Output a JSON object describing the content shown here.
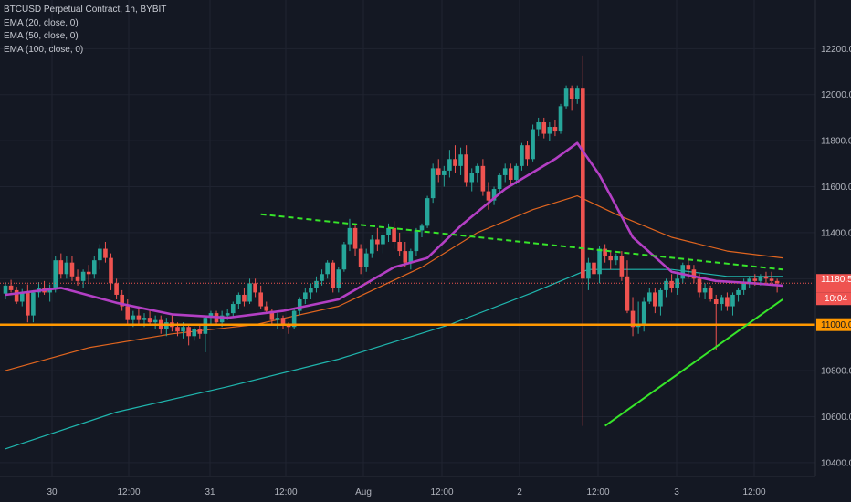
{
  "header": {
    "title": "BTCUSD Perpetual Contract, 1h, BYBIT",
    "indicators": [
      "EMA (20, close, 0)",
      "EMA (50, close, 0)",
      "EMA (100, close, 0)"
    ]
  },
  "colors": {
    "background": "#141823",
    "up": "#26a69a",
    "down": "#ef5350",
    "ema20": "#b33fc4",
    "ema50": "#e0651f",
    "ema100": "#1fb5ad",
    "support": "#ff9800",
    "trendline": "#37e52a",
    "price_tag": "#ef5350",
    "support_tag": "#ff9800"
  },
  "chart_data": {
    "type": "candlestick",
    "title": "BTCUSD Perpetual Contract, 1h, BYBIT",
    "y_axis": {
      "ticks": [
        10400,
        10600,
        10800,
        11000,
        11200,
        11400,
        11600,
        11800,
        12000,
        12200
      ],
      "tick_labels": [
        "10400.0",
        "10600.0",
        "10800.0",
        "11000.0",
        "11200.0",
        "11400.0",
        "11600.0",
        "11800.0",
        "12000.0",
        "12200.0"
      ],
      "range": [
        10340,
        12380
      ]
    },
    "x_axis": {
      "tick_labels": [
        "30",
        "12:00",
        "31",
        "12:00",
        "Aug",
        "12:00",
        "2",
        "12:00",
        "3",
        "12:00"
      ]
    },
    "candles_ohlc": [
      [
        11135,
        11185,
        11110,
        11170
      ],
      [
        11170,
        11195,
        11140,
        11150
      ],
      [
        11150,
        11165,
        11090,
        11100
      ],
      [
        11100,
        11155,
        11080,
        11140
      ],
      [
        11140,
        11175,
        11010,
        11040
      ],
      [
        11040,
        11150,
        11010,
        11140
      ],
      [
        11140,
        11185,
        11120,
        11160
      ],
      [
        11160,
        11190,
        11130,
        11140
      ],
      [
        11140,
        11175,
        11100,
        11160
      ],
      [
        11160,
        11300,
        11140,
        11280
      ],
      [
        11280,
        11310,
        11200,
        11220
      ],
      [
        11220,
        11300,
        11200,
        11270
      ],
      [
        11270,
        11300,
        11190,
        11210
      ],
      [
        11210,
        11240,
        11170,
        11190
      ],
      [
        11190,
        11240,
        11160,
        11230
      ],
      [
        11230,
        11260,
        11180,
        11220
      ],
      [
        11220,
        11300,
        11200,
        11280
      ],
      [
        11280,
        11350,
        11240,
        11330
      ],
      [
        11330,
        11360,
        11270,
        11290
      ],
      [
        11290,
        11310,
        11150,
        11180
      ],
      [
        11180,
        11200,
        11110,
        11130
      ],
      [
        11130,
        11150,
        11060,
        11080
      ],
      [
        11080,
        11110,
        11000,
        11020
      ],
      [
        11020,
        11060,
        10990,
        11040
      ],
      [
        11040,
        11070,
        11000,
        11020
      ],
      [
        11020,
        11050,
        10990,
        11030
      ],
      [
        11030,
        11060,
        11000,
        11010
      ],
      [
        11010,
        11040,
        10980,
        11020
      ],
      [
        11020,
        11040,
        10960,
        10980
      ],
      [
        10980,
        11030,
        10950,
        11010
      ],
      [
        11010,
        11040,
        10970,
        10990
      ],
      [
        10990,
        11010,
        10950,
        10970
      ],
      [
        10970,
        11010,
        10940,
        10990
      ],
      [
        10990,
        11000,
        10910,
        10950
      ],
      [
        10950,
        10990,
        10930,
        10980
      ],
      [
        10980,
        11000,
        10940,
        10960
      ],
      [
        10960,
        11040,
        10880,
        11030
      ],
      [
        11030,
        11060,
        11000,
        11050
      ],
      [
        11050,
        11060,
        11000,
        11010
      ],
      [
        11010,
        11060,
        10990,
        11040
      ],
      [
        11040,
        11070,
        11020,
        11050
      ],
      [
        11050,
        11100,
        11030,
        11090
      ],
      [
        11090,
        11140,
        11070,
        11130
      ],
      [
        11130,
        11160,
        11080,
        11100
      ],
      [
        11100,
        11200,
        11090,
        11180
      ],
      [
        11180,
        11200,
        11120,
        11140
      ],
      [
        11140,
        11170,
        11070,
        11080
      ],
      [
        11080,
        11100,
        11050,
        11060
      ],
      [
        11060,
        11070,
        11000,
        11020
      ],
      [
        11020,
        11050,
        10980,
        11030
      ],
      [
        11030,
        11040,
        10980,
        11000
      ],
      [
        11000,
        11010,
        10960,
        10990
      ],
      [
        10990,
        11070,
        10980,
        11060
      ],
      [
        11060,
        11120,
        11040,
        11110
      ],
      [
        11110,
        11160,
        11090,
        11140
      ],
      [
        11140,
        11180,
        11110,
        11160
      ],
      [
        11160,
        11210,
        11140,
        11190
      ],
      [
        11190,
        11240,
        11170,
        11220
      ],
      [
        11220,
        11280,
        11200,
        11270
      ],
      [
        11270,
        11280,
        11140,
        11160
      ],
      [
        11160,
        11250,
        11140,
        11240
      ],
      [
        11240,
        11360,
        11230,
        11350
      ],
      [
        11350,
        11460,
        11320,
        11420
      ],
      [
        11420,
        11440,
        11300,
        11330
      ],
      [
        11330,
        11350,
        11220,
        11250
      ],
      [
        11250,
        11330,
        11230,
        11310
      ],
      [
        11310,
        11390,
        11290,
        11370
      ],
      [
        11370,
        11420,
        11320,
        11350
      ],
      [
        11350,
        11400,
        11310,
        11390
      ],
      [
        11390,
        11440,
        11360,
        11420
      ],
      [
        11420,
        11450,
        11330,
        11360
      ],
      [
        11360,
        11400,
        11300,
        11320
      ],
      [
        11320,
        11360,
        11250,
        11270
      ],
      [
        11270,
        11330,
        11240,
        11320
      ],
      [
        11320,
        11420,
        11300,
        11410
      ],
      [
        11410,
        11440,
        11380,
        11430
      ],
      [
        11430,
        11560,
        11420,
        11550
      ],
      [
        11550,
        11700,
        11530,
        11680
      ],
      [
        11680,
        11720,
        11620,
        11650
      ],
      [
        11650,
        11690,
        11600,
        11670
      ],
      [
        11670,
        11760,
        11640,
        11720
      ],
      [
        11720,
        11780,
        11660,
        11690
      ],
      [
        11690,
        11770,
        11650,
        11740
      ],
      [
        11740,
        11780,
        11600,
        11620
      ],
      [
        11620,
        11680,
        11580,
        11660
      ],
      [
        11660,
        11700,
        11620,
        11690
      ],
      [
        11690,
        11720,
        11560,
        11580
      ],
      [
        11580,
        11620,
        11500,
        11540
      ],
      [
        11540,
        11600,
        11520,
        11590
      ],
      [
        11590,
        11660,
        11570,
        11650
      ],
      [
        11650,
        11700,
        11620,
        11680
      ],
      [
        11680,
        11700,
        11600,
        11630
      ],
      [
        11630,
        11700,
        11610,
        11690
      ],
      [
        11690,
        11790,
        11670,
        11780
      ],
      [
        11780,
        11800,
        11690,
        11720
      ],
      [
        11720,
        11870,
        11710,
        11850
      ],
      [
        11850,
        11900,
        11820,
        11880
      ],
      [
        11880,
        11900,
        11810,
        11830
      ],
      [
        11830,
        11880,
        11800,
        11860
      ],
      [
        11860,
        11890,
        11820,
        11840
      ],
      [
        11840,
        11960,
        11830,
        11950
      ],
      [
        11950,
        12040,
        11940,
        12030
      ],
      [
        12030,
        12040,
        11930,
        11980
      ],
      [
        11980,
        12040,
        11960,
        12030
      ],
      [
        12030,
        12170,
        10560,
        11200
      ],
      [
        11200,
        11290,
        11150,
        11270
      ],
      [
        11270,
        11330,
        11190,
        11220
      ],
      [
        11220,
        11340,
        11180,
        11330
      ],
      [
        11330,
        11350,
        11270,
        11300
      ],
      [
        11300,
        11320,
        11240,
        11280
      ],
      [
        11280,
        11310,
        11260,
        11300
      ],
      [
        11300,
        11320,
        11190,
        11210
      ],
      [
        11210,
        11280,
        11050,
        11060
      ],
      [
        11060,
        11120,
        10950,
        10990
      ],
      [
        10990,
        11100,
        10960,
        11000
      ],
      [
        11000,
        11120,
        10970,
        11100
      ],
      [
        11100,
        11160,
        11090,
        11140
      ],
      [
        11140,
        11160,
        11050,
        11080
      ],
      [
        11080,
        11160,
        11040,
        11150
      ],
      [
        11150,
        11200,
        11120,
        11190
      ],
      [
        11190,
        11220,
        11140,
        11160
      ],
      [
        11160,
        11230,
        11130,
        11200
      ],
      [
        11200,
        11270,
        11180,
        11260
      ],
      [
        11260,
        11290,
        11200,
        11240
      ],
      [
        11240,
        11260,
        11180,
        11200
      ],
      [
        11200,
        11220,
        11120,
        11140
      ],
      [
        11140,
        11180,
        11110,
        11160
      ],
      [
        11160,
        11170,
        11100,
        11110
      ],
      [
        11110,
        11130,
        10890,
        11090
      ],
      [
        11090,
        11130,
        11060,
        11120
      ],
      [
        11120,
        11140,
        11060,
        11080
      ],
      [
        11080,
        11140,
        11040,
        11130
      ],
      [
        11130,
        11160,
        11100,
        11150
      ],
      [
        11150,
        11200,
        11130,
        11180
      ],
      [
        11180,
        11210,
        11160,
        11200
      ],
      [
        11200,
        11220,
        11170,
        11190
      ],
      [
        11190,
        11220,
        11170,
        11210
      ],
      [
        11210,
        11230,
        11180,
        11200
      ],
      [
        11200,
        11230,
        11170,
        11190
      ],
      [
        11190,
        11200,
        11140,
        11180
      ]
    ],
    "ema20": [
      [
        0,
        11130
      ],
      [
        10,
        11160
      ],
      [
        20,
        11095
      ],
      [
        30,
        11045
      ],
      [
        40,
        11030
      ],
      [
        50,
        11060
      ],
      [
        60,
        11110
      ],
      [
        70,
        11250
      ],
      [
        76,
        11290
      ],
      [
        82,
        11430
      ],
      [
        90,
        11590
      ],
      [
        99,
        11720
      ],
      [
        103,
        11790
      ],
      [
        107,
        11650
      ],
      [
        113,
        11380
      ],
      [
        120,
        11230
      ],
      [
        128,
        11190
      ],
      [
        135,
        11180
      ],
      [
        140,
        11170
      ]
    ],
    "ema50": [
      [
        0,
        10800
      ],
      [
        15,
        10900
      ],
      [
        30,
        10960
      ],
      [
        45,
        11000
      ],
      [
        60,
        11080
      ],
      [
        75,
        11250
      ],
      [
        85,
        11400
      ],
      [
        95,
        11500
      ],
      [
        103,
        11560
      ],
      [
        110,
        11480
      ],
      [
        120,
        11380
      ],
      [
        130,
        11320
      ],
      [
        140,
        11290
      ]
    ],
    "ema100": [
      [
        0,
        10460
      ],
      [
        20,
        10620
      ],
      [
        40,
        10730
      ],
      [
        60,
        10850
      ],
      [
        80,
        11000
      ],
      [
        95,
        11140
      ],
      [
        105,
        11240
      ],
      [
        120,
        11240
      ],
      [
        130,
        11210
      ],
      [
        140,
        11210
      ]
    ],
    "support_level": 11000,
    "trend_lines": [
      {
        "points": [
          [
            46,
            11480
          ],
          [
            140,
            11240
          ]
        ],
        "style": "dashed"
      },
      {
        "points": [
          [
            108,
            10560
          ],
          [
            140,
            11110
          ]
        ],
        "style": "solid"
      }
    ],
    "last_price": "11180.5",
    "countdown": "10:04",
    "support_label": "11000.0"
  }
}
